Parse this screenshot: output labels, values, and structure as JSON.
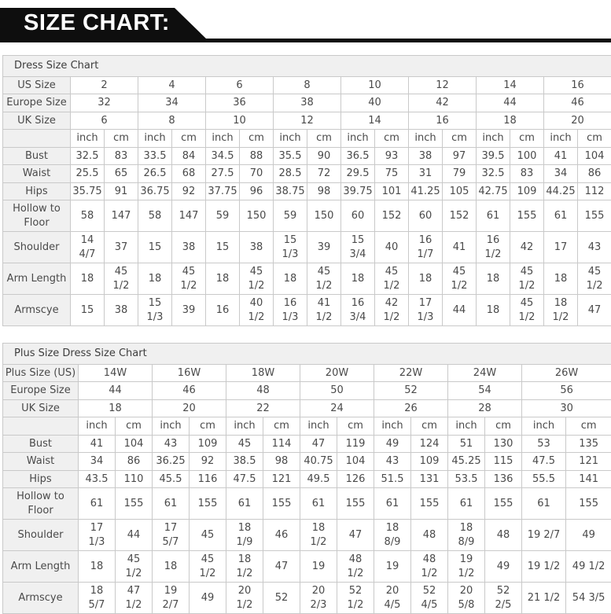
{
  "banner": {
    "title": "SIZE CHART:"
  },
  "dress_chart": {
    "title": "Dress Size Chart",
    "size_rows": [
      {
        "label": "US Size",
        "values": [
          "2",
          "4",
          "6",
          "8",
          "10",
          "12",
          "14",
          "16"
        ]
      },
      {
        "label": "Europe Size",
        "values": [
          "32",
          "34",
          "36",
          "38",
          "40",
          "42",
          "44",
          "46"
        ]
      },
      {
        "label": "UK Size",
        "values": [
          "6",
          "8",
          "10",
          "12",
          "14",
          "16",
          "18",
          "20"
        ]
      }
    ],
    "unit_headers": [
      "inch",
      "cm"
    ],
    "measurement_rows": [
      {
        "label": "Bust",
        "values": [
          "32.5",
          "83",
          "33.5",
          "84",
          "34.5",
          "88",
          "35.5",
          "90",
          "36.5",
          "93",
          "38",
          "97",
          "39.5",
          "100",
          "41",
          "104"
        ]
      },
      {
        "label": "Waist",
        "values": [
          "25.5",
          "65",
          "26.5",
          "68",
          "27.5",
          "70",
          "28.5",
          "72",
          "29.5",
          "75",
          "31",
          "79",
          "32.5",
          "83",
          "34",
          "86"
        ]
      },
      {
        "label": "Hips",
        "values": [
          "35.75",
          "91",
          "36.75",
          "92",
          "37.75",
          "96",
          "38.75",
          "98",
          "39.75",
          "101",
          "41.25",
          "105",
          "42.75",
          "109",
          "44.25",
          "112"
        ]
      },
      {
        "label": "Hollow to Floor",
        "values": [
          "58",
          "147",
          "58",
          "147",
          "59",
          "150",
          "59",
          "150",
          "60",
          "152",
          "60",
          "152",
          "61",
          "155",
          "61",
          "155"
        ]
      },
      {
        "label": "Shoulder",
        "values": [
          "14 4/7",
          "37",
          "15",
          "38",
          "15",
          "38",
          "15 1/3",
          "39",
          "15 3/4",
          "40",
          "16 1/7",
          "41",
          "16 1/2",
          "42",
          "17",
          "43"
        ]
      },
      {
        "label": "Arm Length",
        "values": [
          "18",
          "45 1/2",
          "18",
          "45 1/2",
          "18",
          "45 1/2",
          "18",
          "45 1/2",
          "18",
          "45 1/2",
          "18",
          "45 1/2",
          "18",
          "45 1/2",
          "18",
          "45 1/2"
        ]
      },
      {
        "label": "Armscye",
        "values": [
          "15",
          "38",
          "15 1/3",
          "39",
          "16",
          "40 1/2",
          "16 1/3",
          "41 1/2",
          "16 3/4",
          "42 1/2",
          "17 1/3",
          "44",
          "18",
          "45 1/2",
          "18 1/2",
          "47"
        ]
      }
    ]
  },
  "plus_chart": {
    "title": "Plus Size Dress Size Chart",
    "size_rows": [
      {
        "label": "Plus Size (US)",
        "values": [
          "14W",
          "16W",
          "18W",
          "20W",
          "22W",
          "24W",
          "26W"
        ]
      },
      {
        "label": "Europe Size",
        "values": [
          "44",
          "46",
          "48",
          "50",
          "52",
          "54",
          "56"
        ]
      },
      {
        "label": "UK Size",
        "values": [
          "18",
          "20",
          "22",
          "24",
          "26",
          "28",
          "30"
        ]
      }
    ],
    "unit_headers": [
      "inch",
      "cm"
    ],
    "measurement_rows": [
      {
        "label": "Bust",
        "values": [
          "41",
          "104",
          "43",
          "109",
          "45",
          "114",
          "47",
          "119",
          "49",
          "124",
          "51",
          "130",
          "53",
          "135"
        ]
      },
      {
        "label": "Waist",
        "values": [
          "34",
          "86",
          "36.25",
          "92",
          "38.5",
          "98",
          "40.75",
          "104",
          "43",
          "109",
          "45.25",
          "115",
          "47.5",
          "121"
        ]
      },
      {
        "label": "Hips",
        "values": [
          "43.5",
          "110",
          "45.5",
          "116",
          "47.5",
          "121",
          "49.5",
          "126",
          "51.5",
          "131",
          "53.5",
          "136",
          "55.5",
          "141"
        ]
      },
      {
        "label": "Hollow to Floor",
        "values": [
          "61",
          "155",
          "61",
          "155",
          "61",
          "155",
          "61",
          "155",
          "61",
          "155",
          "61",
          "155",
          "61",
          "155"
        ]
      },
      {
        "label": "Shoulder",
        "values": [
          "17 1/3",
          "44",
          "17 5/7",
          "45",
          "18 1/9",
          "46",
          "18 1/2",
          "47",
          "18 8/9",
          "48",
          "18 8/9",
          "48",
          "19 2/7",
          "49"
        ]
      },
      {
        "label": "Arm Length",
        "values": [
          "18",
          "45 1/2",
          "18",
          "45 1/2",
          "18 1/2",
          "47",
          "19",
          "48 1/2",
          "19",
          "48 1/2",
          "19 1/2",
          "49",
          "19 1/2",
          "49 1/2"
        ]
      },
      {
        "label": "Armscye",
        "values": [
          "18 5/7",
          "47 1/2",
          "19 2/7",
          "49",
          "20 1/2",
          "52",
          "20 2/3",
          "52 1/2",
          "20 4/5",
          "52 4/5",
          "20 5/8",
          "52 2/5",
          "21 1/2",
          "54 3/5"
        ]
      }
    ]
  }
}
